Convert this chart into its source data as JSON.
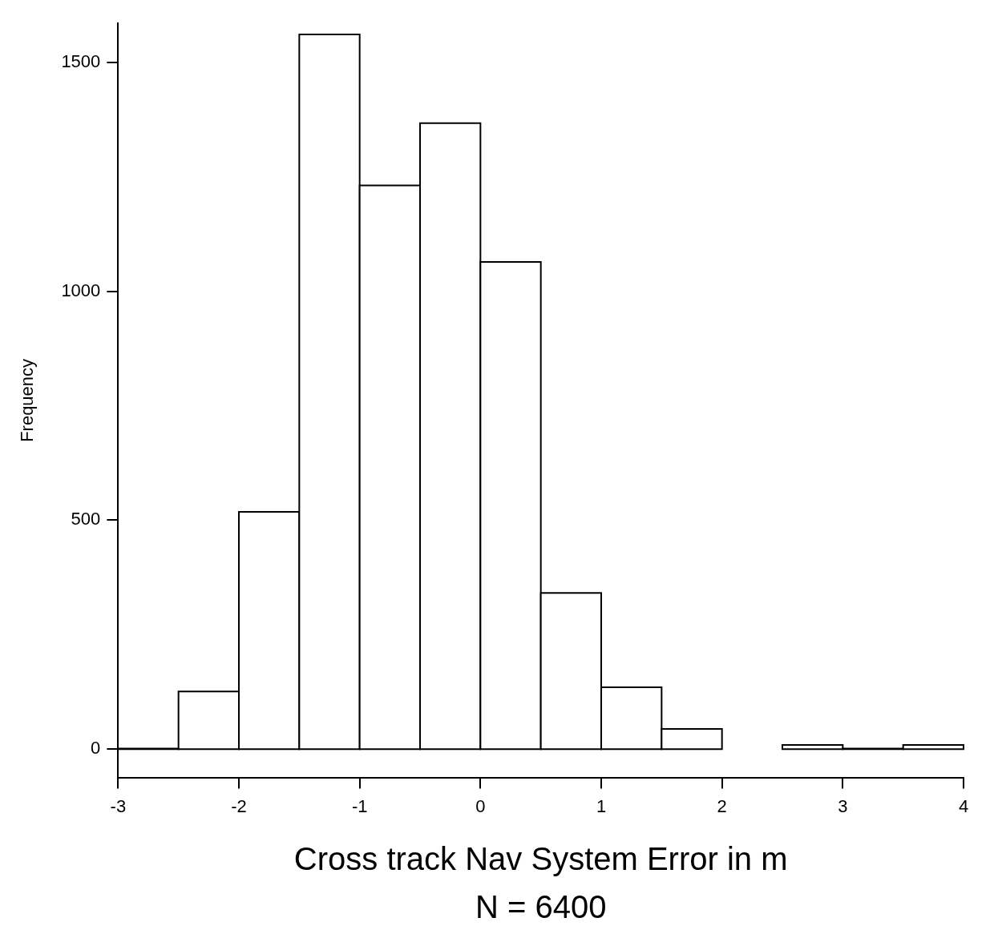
{
  "chart_data": {
    "type": "histogram",
    "xlabel": "Cross track Nav System Error in m",
    "ylabel": "Frequency",
    "annotations": [
      "N = 6400"
    ],
    "bins": [
      -3,
      -2.5,
      -2,
      -1.5,
      -1,
      -0.5,
      0,
      0.5,
      1,
      1.5,
      2,
      2.5,
      3,
      3.5,
      4
    ],
    "values": [
      1,
      126,
      518,
      1561,
      1231,
      1367,
      1064,
      341,
      135,
      44,
      0,
      9,
      1,
      9
    ],
    "color": "#ffffff",
    "xlim": [
      -3,
      4
    ],
    "xticks": [
      -3,
      -2,
      -1,
      0,
      1,
      2,
      3,
      4
    ],
    "ylim": [
      -62,
      1585
    ],
    "yticks": [
      0,
      500,
      1000,
      1500
    ],
    "grid": false
  }
}
